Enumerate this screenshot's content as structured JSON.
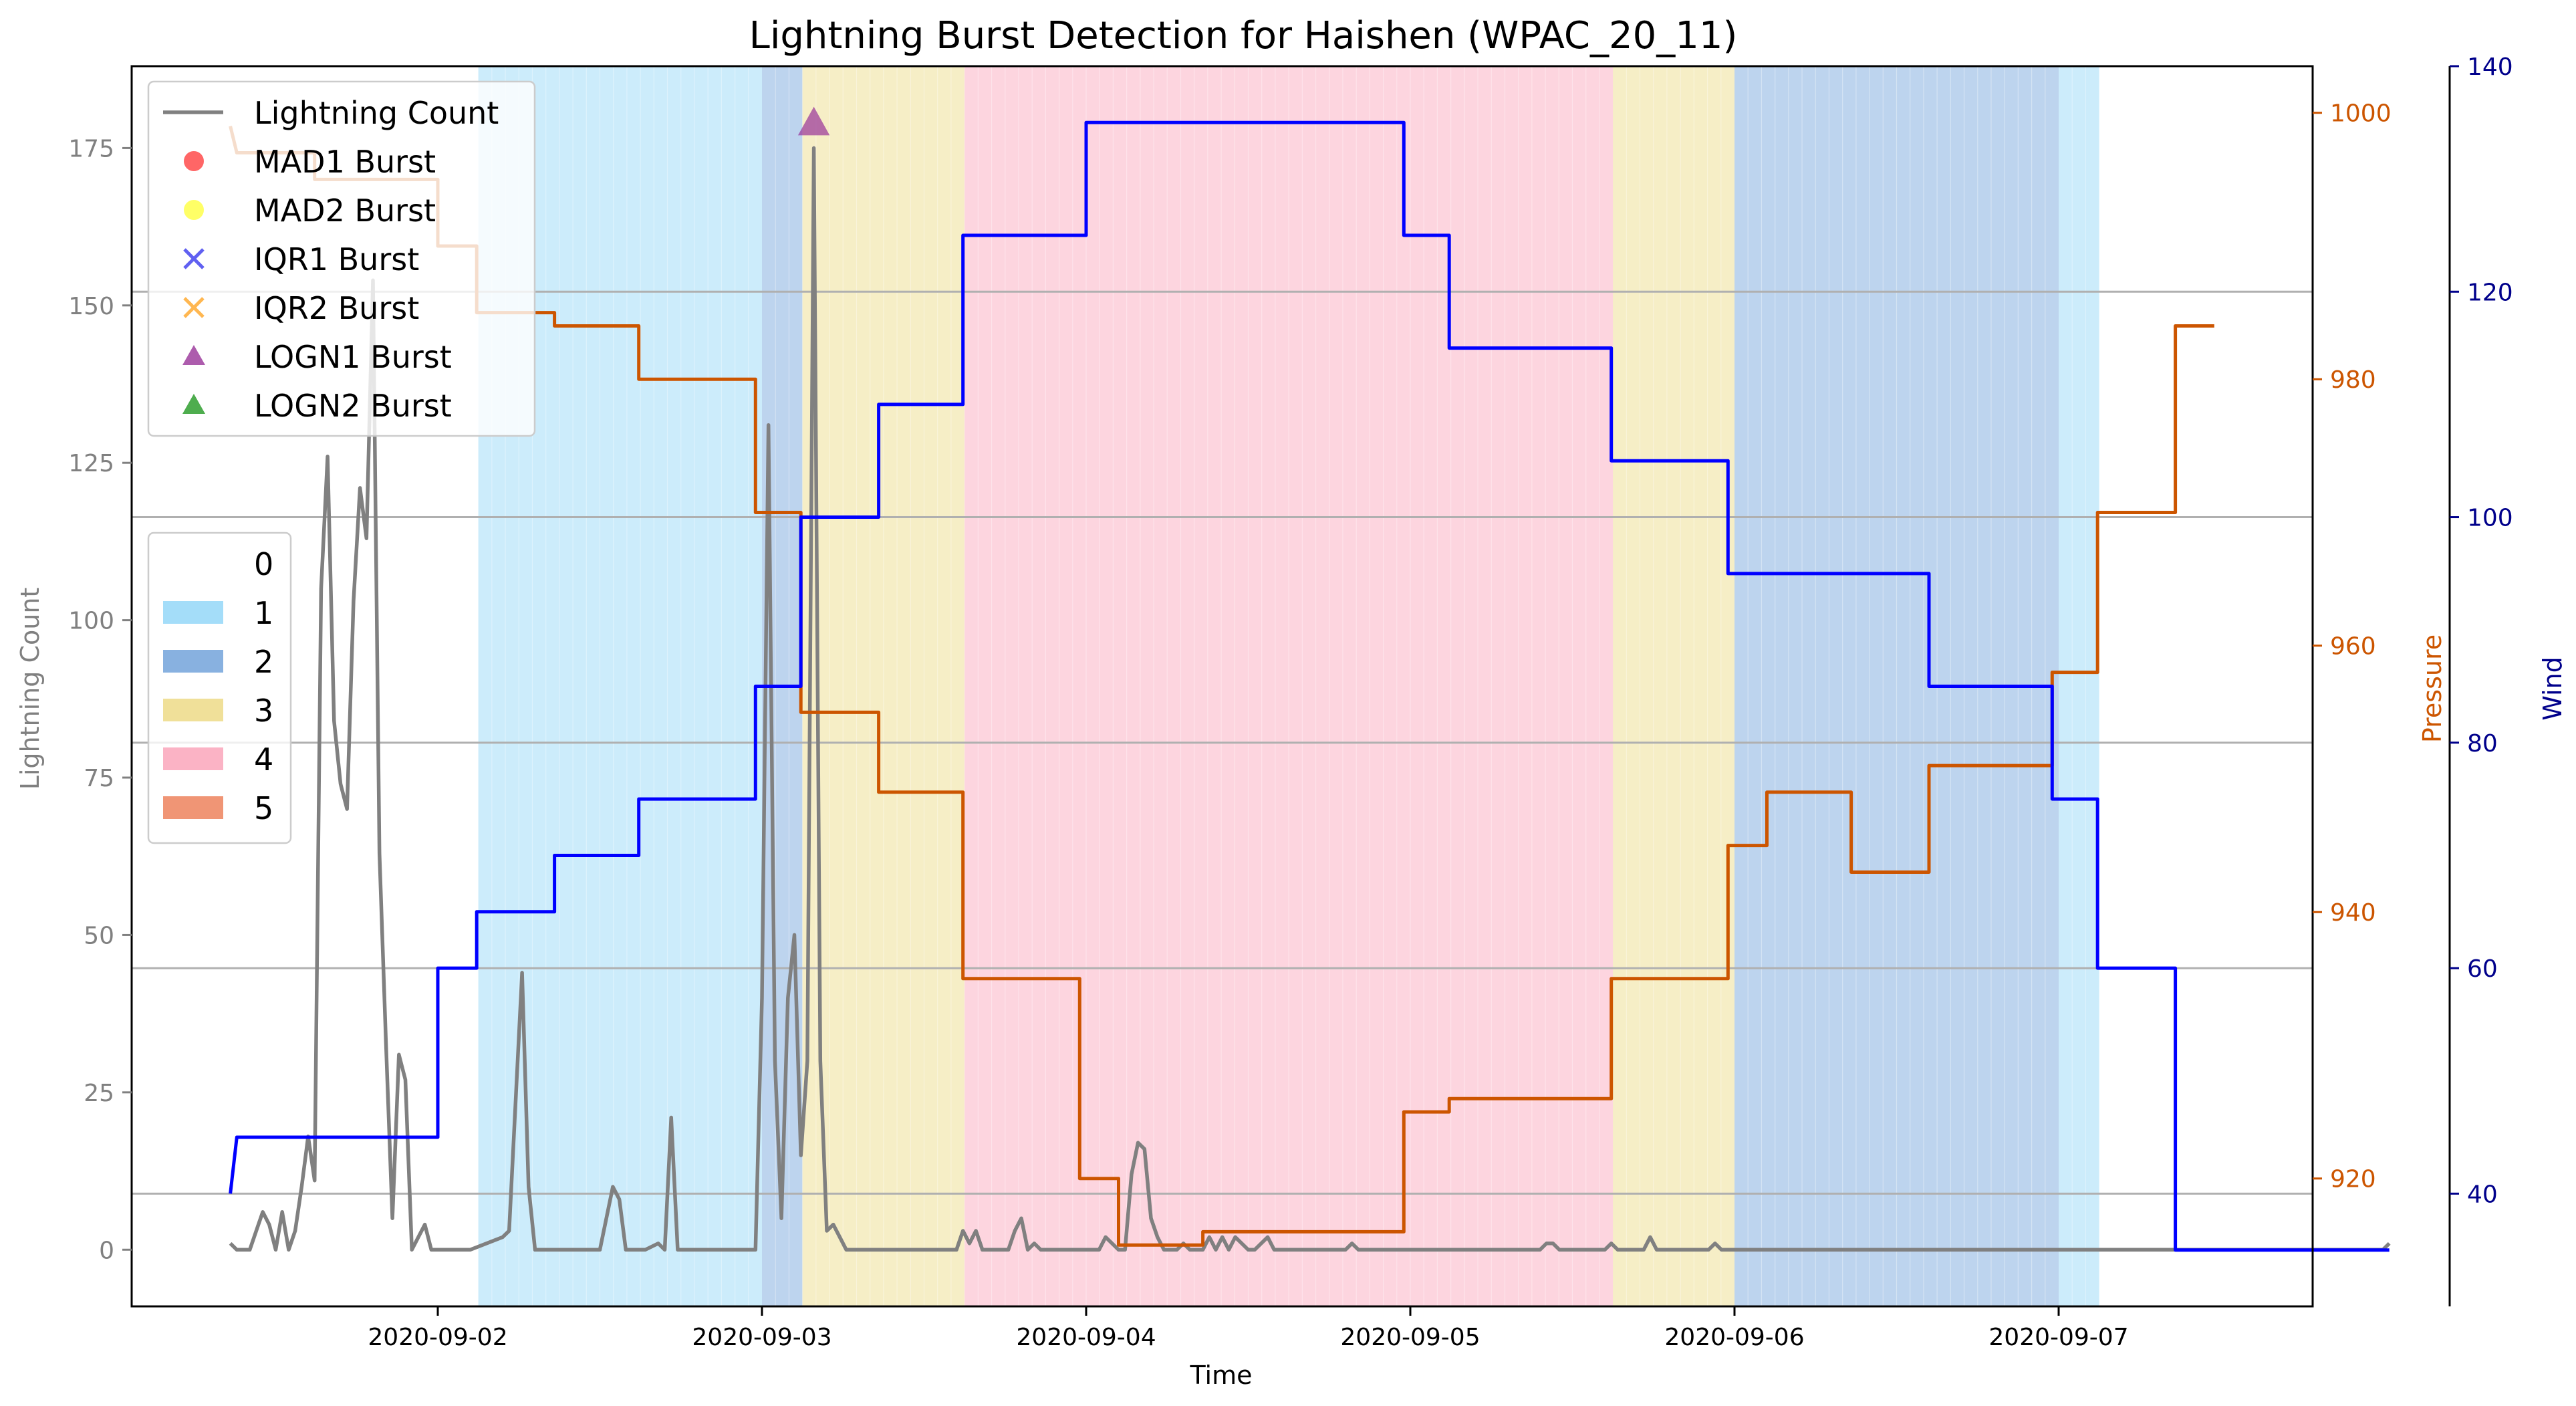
{
  "chart_data": {
    "type": "line",
    "title": "Lightning Burst Detection for Haishen (WPAC_20_11)",
    "xlabel": "Time",
    "ylabel_left": "Lightning Count",
    "ylabel_pressure": "Pressure",
    "ylabel_wind": "Wind",
    "xlim": [
      -0.66,
      6.1
    ],
    "x_ticks": [
      {
        "label": "2020-09-02",
        "value": 0
      },
      {
        "label": "2020-09-03",
        "value": 1
      },
      {
        "label": "2020-09-04",
        "value": 2
      },
      {
        "label": "2020-09-05",
        "value": 3
      },
      {
        "label": "2020-09-06",
        "value": 4
      },
      {
        "label": "2020-09-07",
        "value": 5
      }
    ],
    "ylim_left": [
      -9,
      188
    ],
    "yticks_left": [
      0,
      25,
      50,
      75,
      100,
      125,
      150,
      175
    ],
    "ylim_pressure": [
      910.4,
      1003.5
    ],
    "yticks_pressure": [
      920,
      940,
      960,
      980,
      1000
    ],
    "ylim_wind": [
      30,
      140
    ],
    "yticks_wind": [
      40,
      60,
      80,
      100,
      120,
      140
    ],
    "colors": {
      "lightning": "#808080",
      "pressure": "#cc5500",
      "wind": "#0000ff",
      "wind_axis": "#00008b",
      "grid": "#b0b0b0",
      "cat0": "#ffffff",
      "cat1": "#9ad9f8",
      "cat2": "#7ba9dd",
      "cat3": "#eedd8e",
      "cat4": "#fbabbf",
      "cat5": "#ee8a66"
    },
    "category_spans": [
      {
        "cat": 1,
        "start": 0.125,
        "end": 1.0
      },
      {
        "cat": 2,
        "start": 1.0,
        "end": 1.125
      },
      {
        "cat": 3,
        "start": 1.125,
        "end": 1.625
      },
      {
        "cat": 4,
        "start": 1.625,
        "end": 3.625
      },
      {
        "cat": 3,
        "start": 3.625,
        "end": 4.0
      },
      {
        "cat": 2,
        "start": 4.0,
        "end": 5.0
      },
      {
        "cat": 1,
        "start": 5.0,
        "end": 5.125
      }
    ],
    "lightning_series": {
      "name": "Lightning Count",
      "points": [
        [
          -0.64,
          1
        ],
        [
          -0.62,
          0
        ],
        [
          -0.58,
          0
        ],
        [
          -0.56,
          3
        ],
        [
          -0.54,
          6
        ],
        [
          -0.52,
          4
        ],
        [
          -0.5,
          0
        ],
        [
          -0.48,
          6
        ],
        [
          -0.46,
          0
        ],
        [
          -0.44,
          3
        ],
        [
          -0.42,
          10
        ],
        [
          -0.4,
          18
        ],
        [
          -0.38,
          11
        ],
        [
          -0.36,
          105
        ],
        [
          -0.34,
          126
        ],
        [
          -0.32,
          84
        ],
        [
          -0.3,
          74
        ],
        [
          -0.28,
          70
        ],
        [
          -0.26,
          103
        ],
        [
          -0.24,
          121
        ],
        [
          -0.22,
          113
        ],
        [
          -0.2,
          154
        ],
        [
          -0.18,
          63
        ],
        [
          -0.16,
          33
        ],
        [
          -0.14,
          5
        ],
        [
          -0.12,
          31
        ],
        [
          -0.1,
          27
        ],
        [
          -0.08,
          0
        ],
        [
          -0.06,
          2
        ],
        [
          -0.04,
          4
        ],
        [
          -0.02,
          0
        ],
        [
          0,
          0
        ],
        [
          0.1,
          0
        ],
        [
          0.2,
          2
        ],
        [
          0.22,
          3
        ],
        [
          0.26,
          44
        ],
        [
          0.28,
          10
        ],
        [
          0.3,
          0
        ],
        [
          0.5,
          0
        ],
        [
          0.54,
          10
        ],
        [
          0.56,
          8
        ],
        [
          0.58,
          0
        ],
        [
          0.64,
          0
        ],
        [
          0.68,
          1
        ],
        [
          0.7,
          0
        ],
        [
          0.72,
          21
        ],
        [
          0.74,
          0
        ],
        [
          0.96,
          0
        ],
        [
          0.98,
          0
        ],
        [
          1.0,
          40
        ],
        [
          1.02,
          131
        ],
        [
          1.04,
          30
        ],
        [
          1.06,
          5
        ],
        [
          1.08,
          40
        ],
        [
          1.1,
          50
        ],
        [
          1.12,
          15
        ],
        [
          1.14,
          30
        ],
        [
          1.16,
          175
        ],
        [
          1.18,
          30
        ],
        [
          1.2,
          3
        ],
        [
          1.22,
          4
        ],
        [
          1.24,
          2
        ],
        [
          1.26,
          0
        ],
        [
          1.6,
          0
        ],
        [
          1.62,
          3
        ],
        [
          1.64,
          1
        ],
        [
          1.66,
          3
        ],
        [
          1.68,
          0
        ],
        [
          1.76,
          0
        ],
        [
          1.78,
          3
        ],
        [
          1.8,
          5
        ],
        [
          1.82,
          0
        ],
        [
          1.84,
          1
        ],
        [
          1.86,
          0
        ],
        [
          2.04,
          0
        ],
        [
          2.06,
          2
        ],
        [
          2.08,
          1
        ],
        [
          2.1,
          0
        ],
        [
          2.12,
          0
        ],
        [
          2.14,
          12
        ],
        [
          2.16,
          17
        ],
        [
          2.18,
          16
        ],
        [
          2.2,
          5
        ],
        [
          2.22,
          2
        ],
        [
          2.24,
          0
        ],
        [
          2.28,
          0
        ],
        [
          2.3,
          1
        ],
        [
          2.32,
          0
        ],
        [
          2.36,
          0
        ],
        [
          2.38,
          2
        ],
        [
          2.4,
          0
        ],
        [
          2.42,
          2
        ],
        [
          2.44,
          0
        ],
        [
          2.46,
          2
        ],
        [
          2.48,
          1
        ],
        [
          2.5,
          0
        ],
        [
          2.52,
          0
        ],
        [
          2.54,
          1
        ],
        [
          2.56,
          2
        ],
        [
          2.58,
          0
        ],
        [
          2.8,
          0
        ],
        [
          2.82,
          1
        ],
        [
          2.84,
          0
        ],
        [
          3.4,
          0
        ],
        [
          3.42,
          1
        ],
        [
          3.44,
          1
        ],
        [
          3.46,
          0
        ],
        [
          3.6,
          0
        ],
        [
          3.62,
          1
        ],
        [
          3.64,
          0
        ],
        [
          3.72,
          0
        ],
        [
          3.74,
          2
        ],
        [
          3.76,
          0
        ],
        [
          3.92,
          0
        ],
        [
          3.94,
          1
        ],
        [
          3.96,
          0
        ],
        [
          4.0,
          0
        ],
        [
          5.0,
          0
        ],
        [
          6.0,
          0
        ],
        [
          6.02,
          1
        ]
      ]
    },
    "wind_series": {
      "name": "Wind",
      "points": [
        [
          -0.64,
          40
        ],
        [
          -0.62,
          45
        ],
        [
          0.0,
          45
        ],
        [
          0.0,
          60
        ],
        [
          0.12,
          60
        ],
        [
          0.12,
          65
        ],
        [
          0.36,
          65
        ],
        [
          0.36,
          70
        ],
        [
          0.62,
          70
        ],
        [
          0.62,
          75
        ],
        [
          0.98,
          75
        ],
        [
          0.98,
          85
        ],
        [
          1.12,
          85
        ],
        [
          1.12,
          100
        ],
        [
          1.36,
          100
        ],
        [
          1.36,
          110
        ],
        [
          1.62,
          110
        ],
        [
          1.62,
          125
        ],
        [
          2.0,
          125
        ],
        [
          2.0,
          135
        ],
        [
          2.98,
          135
        ],
        [
          2.98,
          125
        ],
        [
          3.12,
          125
        ],
        [
          3.12,
          115
        ],
        [
          3.62,
          115
        ],
        [
          3.62,
          105
        ],
        [
          3.98,
          105
        ],
        [
          3.98,
          95
        ],
        [
          4.6,
          95
        ],
        [
          4.6,
          85
        ],
        [
          4.98,
          85
        ],
        [
          4.98,
          75
        ],
        [
          5.12,
          75
        ],
        [
          5.12,
          60
        ],
        [
          5.36,
          60
        ],
        [
          5.36,
          35
        ],
        [
          6.02,
          35
        ]
      ]
    },
    "pressure_series": {
      "name": "Pressure",
      "points": [
        [
          -0.64,
          999
        ],
        [
          -0.62,
          997
        ],
        [
          -0.38,
          997
        ],
        [
          -0.38,
          995
        ],
        [
          0.0,
          995
        ],
        [
          0.0,
          990
        ],
        [
          0.12,
          990
        ],
        [
          0.12,
          985
        ],
        [
          0.36,
          985
        ],
        [
          0.36,
          984
        ],
        [
          0.62,
          984
        ],
        [
          0.62,
          980
        ],
        [
          0.98,
          980
        ],
        [
          0.98,
          970
        ],
        [
          1.12,
          970
        ],
        [
          1.12,
          955
        ],
        [
          1.36,
          955
        ],
        [
          1.36,
          949
        ],
        [
          1.62,
          949
        ],
        [
          1.62,
          935
        ],
        [
          1.98,
          935
        ],
        [
          1.98,
          920
        ],
        [
          2.1,
          920
        ],
        [
          2.1,
          915
        ],
        [
          2.36,
          915
        ],
        [
          2.36,
          916
        ],
        [
          2.98,
          916
        ],
        [
          2.98,
          925
        ],
        [
          3.12,
          925
        ],
        [
          3.12,
          926
        ],
        [
          3.62,
          926
        ],
        [
          3.62,
          935
        ],
        [
          3.98,
          935
        ],
        [
          3.98,
          945
        ],
        [
          4.1,
          945
        ],
        [
          4.1,
          949
        ],
        [
          4.36,
          949
        ],
        [
          4.36,
          943
        ],
        [
          4.6,
          943
        ],
        [
          4.6,
          951
        ],
        [
          4.98,
          951
        ],
        [
          4.98,
          958
        ],
        [
          5.12,
          958
        ],
        [
          5.12,
          970
        ],
        [
          5.36,
          970
        ],
        [
          5.36,
          984
        ],
        [
          5.48,
          984
        ]
      ]
    },
    "bursts": [
      {
        "type": "LOGN1",
        "x": 1.16,
        "y": 179
      }
    ],
    "legend_series": [
      {
        "label": "Lightning Count",
        "marker": "line",
        "color": "#808080"
      },
      {
        "label": "MAD1 Burst",
        "marker": "circle",
        "color": "#ff3333"
      },
      {
        "label": "MAD2 Burst",
        "marker": "circle",
        "color": "#ffff33"
      },
      {
        "label": "IQR1 Burst",
        "marker": "x",
        "color": "#4444ee"
      },
      {
        "label": "IQR2 Burst",
        "marker": "x",
        "color": "#ffaa33"
      },
      {
        "label": "LOGN1 Burst",
        "marker": "triangle",
        "color": "#993399"
      },
      {
        "label": "LOGN2 Burst",
        "marker": "triangle",
        "color": "#229922"
      }
    ],
    "legend_categories": [
      {
        "label": "0",
        "color": "#ffffff"
      },
      {
        "label": "1",
        "color": "#9ad9f8"
      },
      {
        "label": "2",
        "color": "#7ba9dd"
      },
      {
        "label": "3",
        "color": "#eedd8e"
      },
      {
        "label": "4",
        "color": "#fbabbf"
      },
      {
        "label": "5",
        "color": "#ee8a66"
      }
    ],
    "legend_placement": "upper-left",
    "grid": "horizontal, at wind ticks"
  }
}
